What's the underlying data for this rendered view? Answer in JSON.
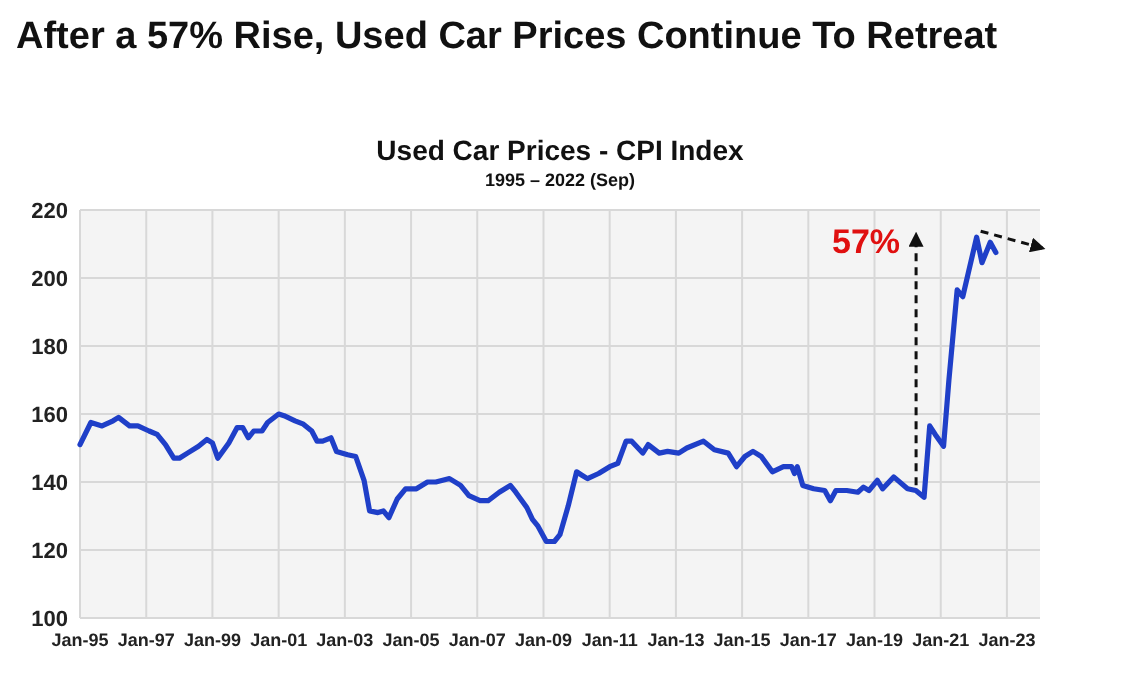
{
  "chart_data": {
    "type": "line",
    "title": "After a 57% Rise, Used Car Prices Continue To Retreat",
    "subtitle": "Used Car Prices - CPI Index",
    "annotations": [
      "1995 – 2022 (Sep)",
      "57%"
    ],
    "x": [
      "1995-01",
      "1995-05",
      "1995-09",
      "1996-01",
      "1996-03",
      "1996-07",
      "1996-10",
      "1997-02",
      "1997-05",
      "1997-08",
      "1997-11",
      "1998-01",
      "1998-04",
      "1998-08",
      "1998-11",
      "1999-01",
      "1999-03",
      "1999-07",
      "1999-10",
      "1999-12",
      "2000-02",
      "2000-04",
      "2000-07",
      "2000-09",
      "2001-01",
      "2001-03",
      "2001-07",
      "2001-10",
      "2002-01",
      "2002-03",
      "2002-05",
      "2002-08",
      "2002-10",
      "2003-02",
      "2003-05",
      "2003-08",
      "2003-10",
      "2004-01",
      "2004-03",
      "2004-05",
      "2004-08",
      "2004-11",
      "2005-03",
      "2005-07",
      "2005-10",
      "2006-03",
      "2006-07",
      "2006-10",
      "2007-02",
      "2007-05",
      "2007-09",
      "2008-01",
      "2008-03",
      "2008-07",
      "2008-09",
      "2008-11",
      "2009-02",
      "2009-05",
      "2009-07",
      "2009-10",
      "2010-01",
      "2010-03",
      "2010-05",
      "2010-09",
      "2011-01",
      "2011-04",
      "2011-07",
      "2011-09",
      "2012-01",
      "2012-03",
      "2012-07",
      "2012-10",
      "2013-02",
      "2013-05",
      "2013-11",
      "2014-03",
      "2014-08",
      "2014-11",
      "2015-02",
      "2015-05",
      "2015-08",
      "2015-12",
      "2016-04",
      "2016-07",
      "2016-08",
      "2016-09",
      "2016-11",
      "2017-03",
      "2017-07",
      "2017-09",
      "2017-11",
      "2018-03",
      "2018-07",
      "2018-09",
      "2018-11",
      "2019-02",
      "2019-04",
      "2019-08",
      "2020-01",
      "2020-04",
      "2020-07",
      "2020-09",
      "2020-11",
      "2021-02",
      "2021-04",
      "2021-07",
      "2021-09",
      "2021-11",
      "2022-02",
      "2022-04",
      "2022-07",
      "2022-09"
    ],
    "series": [
      {
        "color": "#1f3fc8",
        "values": [
          151,
          157.5,
          156.5,
          158,
          159,
          156.5,
          156.5,
          155,
          154,
          151,
          147,
          147,
          148.5,
          150.5,
          152.5,
          151.5,
          147,
          151.5,
          156,
          156,
          153,
          155,
          155,
          157.5,
          160,
          159.5,
          158,
          157,
          155,
          152,
          152,
          153,
          149,
          148,
          147.5,
          140.5,
          131.5,
          131,
          131.5,
          129.5,
          135,
          138,
          138,
          140,
          140,
          141,
          139,
          136,
          134.5,
          134.5,
          137,
          139,
          137,
          132.5,
          129,
          127,
          122.5,
          122.5,
          124.5,
          133,
          143,
          142,
          141,
          142.5,
          144.5,
          145.5,
          152,
          152,
          148.5,
          151,
          148.5,
          149,
          148.5,
          150,
          152,
          149.5,
          148.5,
          144.5,
          147.5,
          149,
          147.5,
          143,
          144.5,
          144.5,
          142.5,
          144.5,
          139,
          138,
          137.5,
          134.5,
          137.5,
          137.5,
          137,
          138.5,
          137.5,
          140.5,
          138,
          141.5,
          138,
          137.5,
          135.5,
          156.5,
          154,
          150.5,
          170,
          196.5,
          194.5,
          201.5,
          212,
          204.5,
          210.5,
          207.5
        ]
      }
    ],
    "xlim": [
      "1995-01",
      "2024-01"
    ],
    "xticks": [
      {
        "value": "1995-01",
        "label": "Jan-95"
      },
      {
        "value": "1997-01",
        "label": "Jan-97"
      },
      {
        "value": "1999-01",
        "label": "Jan-99"
      },
      {
        "value": "2001-01",
        "label": "Jan-01"
      },
      {
        "value": "2003-01",
        "label": "Jan-03"
      },
      {
        "value": "2005-01",
        "label": "Jan-05"
      },
      {
        "value": "2007-01",
        "label": "Jan-07"
      },
      {
        "value": "2009-01",
        "label": "Jan-09"
      },
      {
        "value": "2011-01",
        "label": "Jan-11"
      },
      {
        "value": "2013-01",
        "label": "Jan-13"
      },
      {
        "value": "2015-01",
        "label": "Jan-15"
      },
      {
        "value": "2017-01",
        "label": "Jan-17"
      },
      {
        "value": "2019-01",
        "label": "Jan-19"
      },
      {
        "value": "2021-01",
        "label": "Jan-21"
      },
      {
        "value": "2023-01",
        "label": "Jan-23"
      }
    ],
    "ylim": [
      100,
      220
    ],
    "yticks": [
      100,
      120,
      140,
      160,
      180,
      200,
      220
    ],
    "grid": true,
    "marker": "none",
    "line_style": "solid"
  }
}
